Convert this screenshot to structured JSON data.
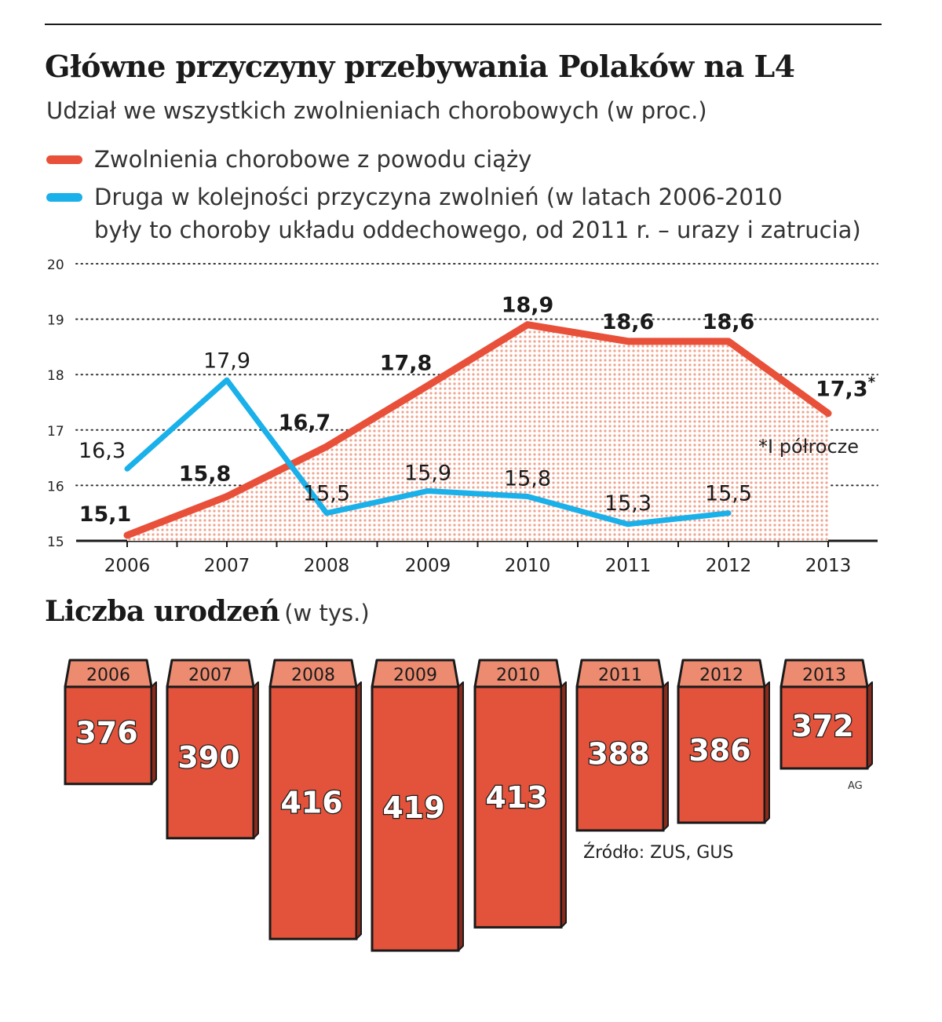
{
  "title": "Główne przyczyny przebywania Polaków na L4",
  "subtitle": "Udział we wszystkich zwolnieniach chorobowych (w proc.)",
  "legend": [
    {
      "label_lines": [
        "Zwolnienia chorobowe z powodu ciąży"
      ],
      "color": "#e8503a"
    },
    {
      "label_lines": [
        "Druga w kolejności przyczyna zwolnień (w latach 2006-2010",
        "były to choroby układu oddechowego, od 2011 r. – urazy i zatrucia)"
      ],
      "color": "#1ab0ea"
    }
  ],
  "footnote": "*I półrocze",
  "births_title": "Liczba urodzeń",
  "births_unit": "(w tys.)",
  "source": "Źródło: ZUS, GUS",
  "credit": "AG",
  "chart_data": [
    {
      "type": "line",
      "x": [
        "2006",
        "2007",
        "2008",
        "2009",
        "2010",
        "2011",
        "2012",
        "2013"
      ],
      "ylim": [
        15,
        20
      ],
      "yticks": [
        "15",
        "16",
        "17",
        "18",
        "19",
        "20"
      ],
      "grid": true,
      "series": [
        {
          "key": "pregnancy",
          "values": [
            15.1,
            15.8,
            16.7,
            17.8,
            18.9,
            18.6,
            18.6,
            17.3
          ],
          "labels": [
            "15,1",
            "15,8",
            "16,7",
            "17,8",
            "18,9",
            "18,6",
            "18,6",
            "17,3*"
          ],
          "color": "#e8503a",
          "fill": "dotted",
          "fill_color": "#efa48f"
        },
        {
          "key": "second_cause",
          "values": [
            16.3,
            17.9,
            15.5,
            15.9,
            15.8,
            15.3,
            15.5,
            null
          ],
          "labels": [
            "16,3",
            "17,9",
            "15,5",
            "15,9",
            "15,8",
            "15,3",
            "15,5",
            null
          ],
          "color": "#1ab0ea"
        }
      ]
    },
    {
      "type": "bar",
      "categories": [
        "2006",
        "2007",
        "2008",
        "2009",
        "2010",
        "2011",
        "2012",
        "2013"
      ],
      "values": [
        376,
        390,
        416,
        419,
        413,
        388,
        386,
        372
      ],
      "labels": [
        "376",
        "390",
        "416",
        "419",
        "413",
        "388",
        "386",
        "372"
      ],
      "style": "3d-blocks",
      "color": "#e3533b",
      "top_color": "#ec8b70"
    }
  ]
}
